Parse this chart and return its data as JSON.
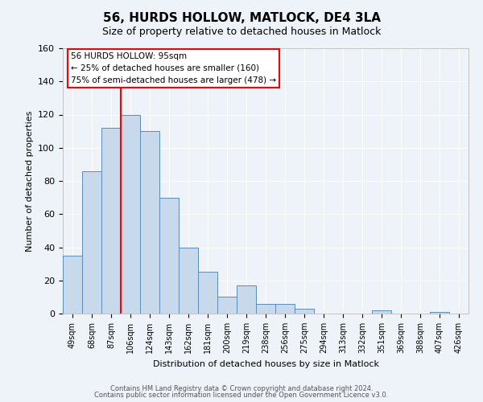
{
  "title": "56, HURDS HOLLOW, MATLOCK, DE4 3LA",
  "subtitle": "Size of property relative to detached houses in Matlock",
  "xlabel": "Distribution of detached houses by size in Matlock",
  "ylabel": "Number of detached properties",
  "footnote1": "Contains HM Land Registry data © Crown copyright and database right 2024.",
  "footnote2": "Contains public sector information licensed under the Open Government Licence v3.0.",
  "bin_labels": [
    "49sqm",
    "68sqm",
    "87sqm",
    "106sqm",
    "124sqm",
    "143sqm",
    "162sqm",
    "181sqm",
    "200sqm",
    "219sqm",
    "238sqm",
    "256sqm",
    "275sqm",
    "294sqm",
    "313sqm",
    "332sqm",
    "351sqm",
    "369sqm",
    "388sqm",
    "407sqm",
    "426sqm"
  ],
  "bar_values": [
    35,
    86,
    112,
    120,
    110,
    70,
    40,
    25,
    10,
    17,
    6,
    6,
    3,
    0,
    0,
    0,
    2,
    0,
    0,
    1,
    0
  ],
  "bar_color": "#c9d9ec",
  "bar_edge_color": "#5b8db8",
  "background_color": "#eef2f9",
  "grid_color": "#ffffff",
  "red_line_bin_index": 3,
  "annotation_title": "56 HURDS HOLLOW: 95sqm",
  "annotation_line1": "← 25% of detached houses are smaller (160)",
  "annotation_line2": "75% of semi-detached houses are larger (478) →",
  "ylim": [
    0,
    160
  ],
  "yticks": [
    0,
    20,
    40,
    60,
    80,
    100,
    120,
    140,
    160
  ],
  "title_fontsize": 11,
  "subtitle_fontsize": 9,
  "ylabel_fontsize": 8,
  "xlabel_fontsize": 8,
  "tick_fontsize": 7,
  "footnote_fontsize": 6
}
